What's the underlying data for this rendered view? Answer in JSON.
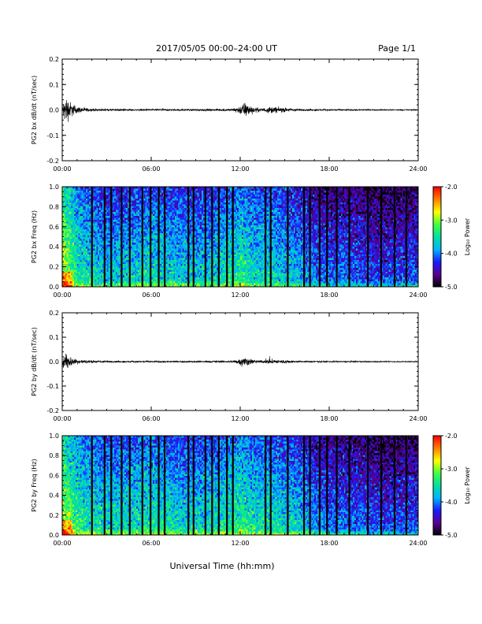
{
  "header": {
    "title": "2017/05/05  00:00–24:00 UT",
    "page": "Page 1/1"
  },
  "footer": {
    "xlabel": "Universal Time (hh:mm)"
  },
  "colorbar": {
    "label": "Log₁₀ Power",
    "ticks": [
      "-2.0",
      "-3.0",
      "-4.0",
      "-5.0"
    ],
    "range": [
      -5.0,
      -2.0
    ],
    "colormap": [
      "#000000",
      "#5a0090",
      "#1a1aff",
      "#00b4ff",
      "#00e0a0",
      "#40ff40",
      "#ffff00",
      "#ff8000",
      "#ff0000"
    ]
  },
  "chart_data": [
    {
      "type": "line",
      "ylabel": "PG2 bx dB/dt (nT/sec)",
      "xticks": [
        "00:00",
        "06:00",
        "12:00",
        "18:00",
        "24:00"
      ],
      "yticks": [
        "0.2",
        "0.1",
        "0.0",
        "-0.1",
        "-0.2"
      ],
      "xlim": [
        0,
        24
      ],
      "ylim": [
        -0.2,
        0.2
      ],
      "series": [
        {
          "x": [
            0.0,
            0.15,
            0.3,
            0.45,
            0.6,
            0.8,
            1.0,
            1.5,
            2.0,
            3.0,
            4.0,
            6.0,
            8.0,
            10.0,
            11.5,
            12.0,
            12.3,
            12.6,
            13.0,
            13.5,
            14.0,
            16.0,
            18.0,
            20.0,
            22.0,
            24.0
          ],
          "amp": [
            0.02,
            0.07,
            0.075,
            0.06,
            0.045,
            0.03,
            0.02,
            0.012,
            0.008,
            0.006,
            0.006,
            0.005,
            0.005,
            0.006,
            0.008,
            0.025,
            0.045,
            0.03,
            0.015,
            0.01,
            0.02,
            0.006,
            0.005,
            0.004,
            0.003,
            0.003
          ]
        }
      ]
    },
    {
      "type": "heatmap",
      "ylabel": "PG2 bx Freq (Hz)",
      "xticks": [
        "00:00",
        "06:00",
        "12:00",
        "18:00",
        "24:00"
      ],
      "yticks": [
        "1.0",
        "0.8",
        "0.6",
        "0.4",
        "0.2",
        "0.0"
      ],
      "xlim": [
        0,
        24
      ],
      "ylim": [
        0.0,
        1.0
      ],
      "zlim": [
        -5.0,
        -2.0
      ],
      "data_gaps_hours": [
        2.0,
        2.85,
        3.3,
        4.0,
        4.55,
        5.4,
        5.95,
        6.5,
        6.9,
        8.5,
        8.85,
        9.65,
        10.1,
        10.55,
        11.1,
        11.5,
        13.7,
        14.05,
        15.2,
        16.3,
        16.7,
        17.35,
        17.85,
        18.5,
        19.35,
        20.6,
        21.5,
        22.4,
        23.2
      ],
      "mean_log_power_by_hour": [
        -3.1,
        -3.7,
        -3.9,
        -4.0,
        -3.95,
        -3.9,
        -3.85,
        -3.9,
        -3.95,
        -4.0,
        -3.95,
        -3.8,
        -3.7,
        -3.9,
        -3.85,
        -4.0,
        -4.1,
        -4.3,
        -4.35,
        -4.35,
        -4.4,
        -4.5,
        -4.5,
        -4.45,
        -4.4
      ]
    },
    {
      "type": "line",
      "ylabel": "PG2 by dB/dt (nT/sec)",
      "xticks": [
        "00:00",
        "06:00",
        "12:00",
        "18:00",
        "24:00"
      ],
      "yticks": [
        "0.2",
        "0.1",
        "0.0",
        "-0.1",
        "-0.2"
      ],
      "xlim": [
        0,
        24
      ],
      "ylim": [
        -0.2,
        0.2
      ],
      "series": [
        {
          "x": [
            0.0,
            0.15,
            0.3,
            0.45,
            0.6,
            0.8,
            1.0,
            1.5,
            2.0,
            3.0,
            4.0,
            6.0,
            8.0,
            10.0,
            11.5,
            12.0,
            12.3,
            12.6,
            13.0,
            13.5,
            14.0,
            16.0,
            18.0,
            20.0,
            22.0,
            24.0
          ],
          "amp": [
            0.015,
            0.045,
            0.05,
            0.04,
            0.03,
            0.02,
            0.015,
            0.01,
            0.008,
            0.006,
            0.005,
            0.005,
            0.005,
            0.006,
            0.007,
            0.02,
            0.03,
            0.02,
            0.01,
            0.008,
            0.015,
            0.005,
            0.004,
            0.004,
            0.003,
            0.003
          ]
        }
      ]
    },
    {
      "type": "heatmap",
      "ylabel": "PG2 by Freq (Hz)",
      "xticks": [
        "00:00",
        "06:00",
        "12:00",
        "18:00",
        "24:00"
      ],
      "yticks": [
        "1.0",
        "0.8",
        "0.6",
        "0.4",
        "0.2",
        "0.0"
      ],
      "xlim": [
        0,
        24
      ],
      "ylim": [
        0.0,
        1.0
      ],
      "zlim": [
        -5.0,
        -2.0
      ],
      "data_gaps_hours": [
        2.0,
        2.85,
        3.3,
        4.0,
        4.55,
        5.4,
        5.95,
        6.5,
        6.9,
        8.5,
        8.85,
        9.65,
        10.1,
        10.55,
        11.1,
        11.5,
        13.7,
        14.05,
        15.2,
        16.3,
        16.7,
        17.35,
        17.85,
        18.5,
        19.35,
        20.6,
        21.5,
        22.4,
        23.2
      ],
      "mean_log_power_by_hour": [
        -3.2,
        -3.6,
        -3.8,
        -3.85,
        -3.85,
        -3.8,
        -3.75,
        -3.8,
        -3.9,
        -3.9,
        -3.85,
        -3.75,
        -3.65,
        -3.8,
        -3.8,
        -3.9,
        -4.0,
        -4.2,
        -4.3,
        -4.35,
        -4.35,
        -4.45,
        -4.5,
        -4.45,
        -4.4
      ]
    }
  ]
}
